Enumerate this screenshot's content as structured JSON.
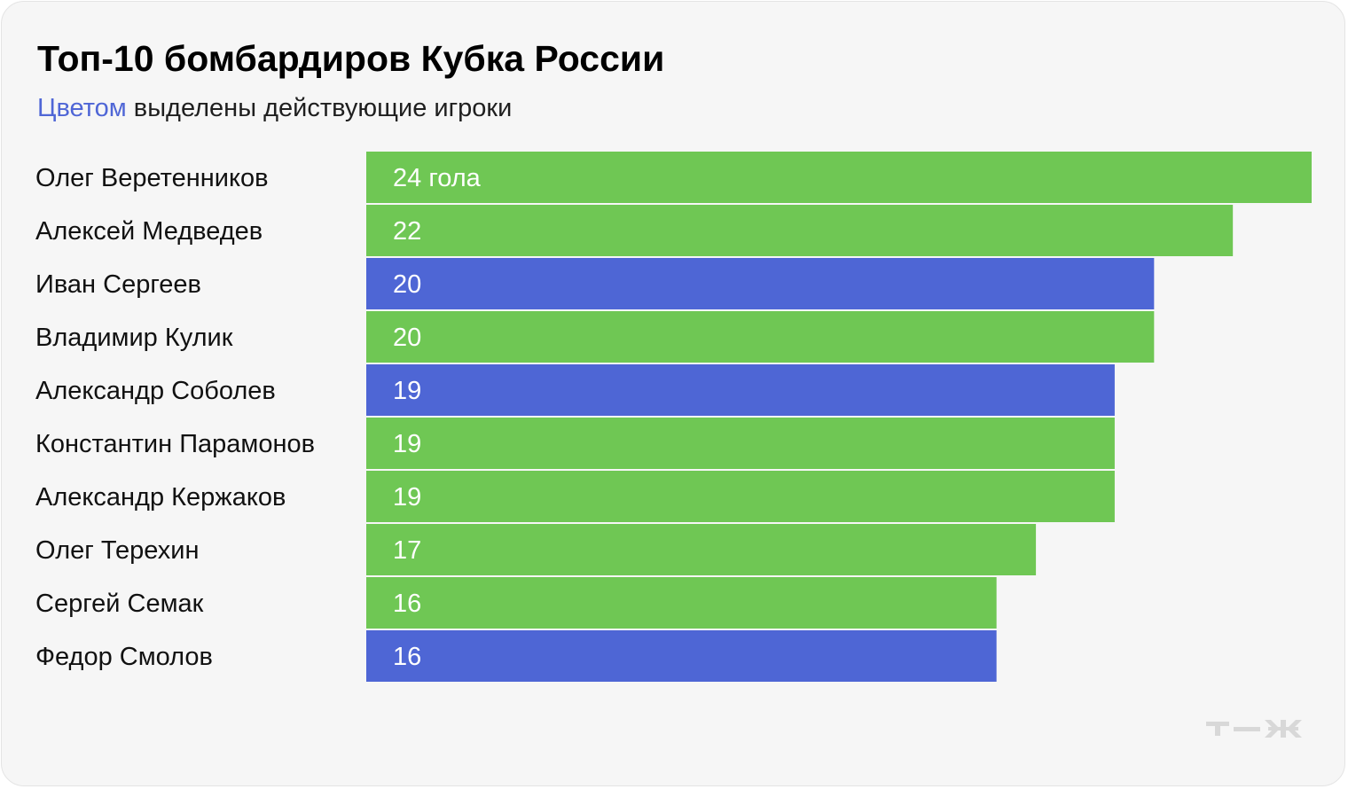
{
  "header": {
    "title": "Топ-10 бомбардиров Кубка России",
    "subtitle_accent": "Цветом",
    "subtitle_rest": " выделены действующие игроки"
  },
  "colors": {
    "retired": "#6fc754",
    "active": "#4e66d5",
    "accent_text": "#4f66d6",
    "background": "#f6f6f6",
    "logo": "#d8d8d8"
  },
  "logo": {
    "icon": "tzh-logo-icon"
  },
  "chart_data": {
    "type": "bar",
    "orientation": "horizontal",
    "title": "Топ-10 бомбардиров Кубка России",
    "categories": [
      "Олег Веретенников",
      "Алексей Медведев",
      "Иван Сергеев",
      "Владимир Кулик",
      "Александр Соболев",
      "Константин Парамонов",
      "Александр Кержаков",
      "Олег Терехин",
      "Сергей Семак",
      "Федор Смолов"
    ],
    "values": [
      24,
      22,
      20,
      20,
      19,
      19,
      19,
      17,
      16,
      16
    ],
    "value_labels": [
      "24 гола",
      "22",
      "20",
      "20",
      "19",
      "19",
      "19",
      "17",
      "16",
      "16"
    ],
    "active": [
      false,
      false,
      true,
      false,
      true,
      false,
      false,
      false,
      false,
      true
    ],
    "xlim": [
      0,
      24
    ],
    "grid": false,
    "legend": "none"
  }
}
